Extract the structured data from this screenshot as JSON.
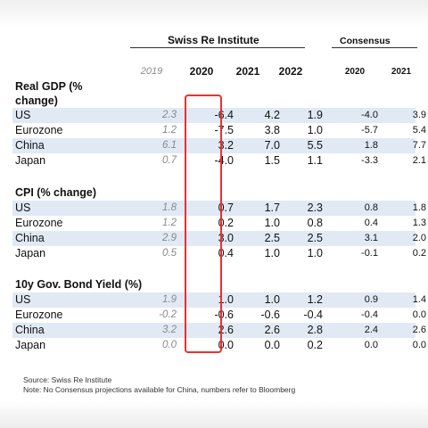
{
  "header": {
    "swiss_re_label": "Swiss Re Institute",
    "consensus_label": "Consensus",
    "years": [
      "2019",
      "2020",
      "2021",
      "2022"
    ],
    "consensus_years": [
      "2020",
      "2021"
    ]
  },
  "sections": [
    {
      "title_line1": "Real GDP (%",
      "title_line2": "change)",
      "rows": [
        {
          "label": "US",
          "v2019": "2.3",
          "v2020": "-6.4",
          "v2021": "4.2",
          "v2022": "1.9",
          "c2020": "-4.0",
          "c2021": "3.9"
        },
        {
          "label": "Eurozone",
          "v2019": "1.2",
          "v2020": "-7.5",
          "v2021": "3.8",
          "v2022": "1.0",
          "c2020": "-5.7",
          "c2021": "5.4"
        },
        {
          "label": "China",
          "v2019": "6.1",
          "v2020": "3.2",
          "v2021": "7.0",
          "v2022": "5.5",
          "c2020": "1.8",
          "c2021": "7.7"
        },
        {
          "label": "Japan",
          "v2019": "0.7",
          "v2020": "-4.0",
          "v2021": "1.5",
          "v2022": "1.1",
          "c2020": "-3.3",
          "c2021": "2.1"
        }
      ]
    },
    {
      "title_line1": "CPI (% change)",
      "rows": [
        {
          "label": "US",
          "v2019": "1.8",
          "v2020": "0.7",
          "v2021": "1.7",
          "v2022": "2.3",
          "c2020": "0.8",
          "c2021": "1.8"
        },
        {
          "label": "Eurozone",
          "v2019": "1.2",
          "v2020": "0.2",
          "v2021": "1.0",
          "v2022": "0.8",
          "c2020": "0.4",
          "c2021": "1.3"
        },
        {
          "label": "China",
          "v2019": "2.9",
          "v2020": "3.0",
          "v2021": "2.5",
          "v2022": "2.5",
          "c2020": "3.1",
          "c2021": "2.0"
        },
        {
          "label": "Japan",
          "v2019": "0.5",
          "v2020": "0.4",
          "v2021": "1.0",
          "v2022": "1.0",
          "c2020": "-0.1",
          "c2021": "0.2"
        }
      ]
    },
    {
      "title_line1": "10y Gov. Bond Yield (%)",
      "rows": [
        {
          "label": "US",
          "v2019": "1.9",
          "v2020": "1.0",
          "v2021": "1.0",
          "v2022": "1.2",
          "c2020": "0.9",
          "c2021": "1.4"
        },
        {
          "label": "Eurozone",
          "v2019": "-0.2",
          "v2020": "-0.6",
          "v2021": "-0.6",
          "v2022": "-0.4",
          "c2020": "-0.4",
          "c2021": "0.0"
        },
        {
          "label": "China",
          "v2019": "3.2",
          "v2020": "2.6",
          "v2021": "2.6",
          "v2022": "2.8",
          "c2020": "2.4",
          "c2021": "2.6"
        },
        {
          "label": "Japan",
          "v2019": "0.0",
          "v2020": "0.0",
          "v2021": "0.0",
          "v2022": "0.2",
          "c2020": "0.0",
          "c2021": "0.0"
        }
      ]
    }
  ],
  "notes": {
    "source": "Source: Swiss Re Institute",
    "note": "Note:  No Consensus projections available for China, numbers refer to Bloomberg"
  },
  "highlight_color": "#e8322e",
  "band_color": "#e1e9f4"
}
